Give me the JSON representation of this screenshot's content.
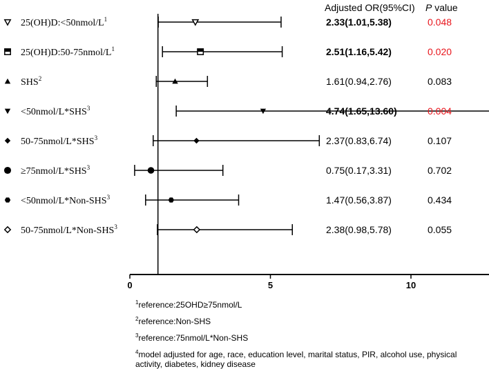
{
  "header": {
    "or_label": "Adjusted OR(95%CI)",
    "p_italic": "P",
    "p_rest": " value"
  },
  "rows": [
    {
      "label": "25(OH)D:<50nmol/L",
      "sup": "1",
      "symbol": "triangle-down-open",
      "or": 2.33,
      "lo": 1.01,
      "hi": 5.38,
      "or_text": "2.33(1.01,5.38)",
      "p": "0.048",
      "bold": true,
      "significant": true
    },
    {
      "label": "25(OH)D:50-75nmol/L",
      "sup": "1",
      "symbol": "square-half",
      "or": 2.51,
      "lo": 1.16,
      "hi": 5.42,
      "or_text": "2.51(1.16,5.42)",
      "p": "0.020",
      "bold": true,
      "significant": true
    },
    {
      "label": "SHS",
      "sup": "2",
      "symbol": "triangle-up",
      "or": 1.61,
      "lo": 0.94,
      "hi": 2.76,
      "or_text": "1.61(0.94,2.76)",
      "p": "0.083",
      "bold": false,
      "significant": false
    },
    {
      "label": "<50nmol/L*SHS",
      "sup": "3",
      "symbol": "triangle-down",
      "or": 4.74,
      "lo": 1.65,
      "hi": 13.6,
      "or_text": "4.74(1.65,13.60)",
      "p": "0.004",
      "bold": true,
      "significant": true
    },
    {
      "label": "50-75nmol/L*SHS",
      "sup": "3",
      "symbol": "diamond",
      "or": 2.37,
      "lo": 0.83,
      "hi": 6.74,
      "or_text": "2.37(0.83,6.74)",
      "p": "0.107",
      "bold": false,
      "significant": false
    },
    {
      "label": "≥75nmol/L*SHS",
      "sup": "3",
      "symbol": "circle",
      "or": 0.75,
      "lo": 0.17,
      "hi": 3.31,
      "or_text": "0.75(0.17,3.31)",
      "p": "0.702",
      "bold": false,
      "significant": false
    },
    {
      "label": "<50nmol/L*Non-SHS",
      "sup": "3",
      "symbol": "hexagon",
      "or": 1.47,
      "lo": 0.56,
      "hi": 3.87,
      "or_text": "1.47(0.56,3.87)",
      "p": "0.434",
      "bold": false,
      "significant": false
    },
    {
      "label": "50-75nmol/L*Non-SHS",
      "sup": "3",
      "symbol": "diamond-open",
      "or": 2.38,
      "lo": 0.98,
      "hi": 5.78,
      "or_text": "2.38(0.98,5.78)",
      "p": "0.055",
      "bold": false,
      "significant": false
    }
  ],
  "chart_data": {
    "type": "scatter",
    "subtype": "forest-plot",
    "reference_line": 1,
    "xlim": [
      0,
      14
    ],
    "xticks": [
      0,
      5,
      10
    ],
    "series": [
      {
        "values": [
          2.33,
          2.51,
          1.61,
          4.74,
          2.37,
          0.75,
          1.47,
          2.38
        ],
        "ci_low": [
          1.01,
          1.16,
          0.94,
          1.65,
          0.83,
          0.17,
          0.56,
          0.98
        ],
        "ci_high": [
          5.38,
          5.42,
          2.76,
          13.6,
          6.74,
          3.31,
          3.87,
          5.78
        ]
      }
    ],
    "categories": [
      "25(OH)D:<50nmol/L",
      "25(OH)D:50-75nmol/L",
      "SHS",
      "<50nmol/L*SHS",
      "50-75nmol/L*SHS",
      "≥75nmol/L*SHS",
      "<50nmol/L*Non-SHS",
      "50-75nmol/L*Non-SHS"
    ]
  },
  "notes": [
    {
      "sup": "1",
      "text": "reference:25OHD≥75nmol/L"
    },
    {
      "sup": "2",
      "text": "reference:Non-SHS"
    },
    {
      "sup": "3",
      "text": "reference:75nmol/L*Non-SHS"
    },
    {
      "sup": "4",
      "text": "model adjusted for age, race, education level, marital status, PIR, alcohol use, physical activity, diabetes, kidney disease"
    }
  ],
  "colors": {
    "significant": "#e8141b",
    "text": "#000000"
  }
}
